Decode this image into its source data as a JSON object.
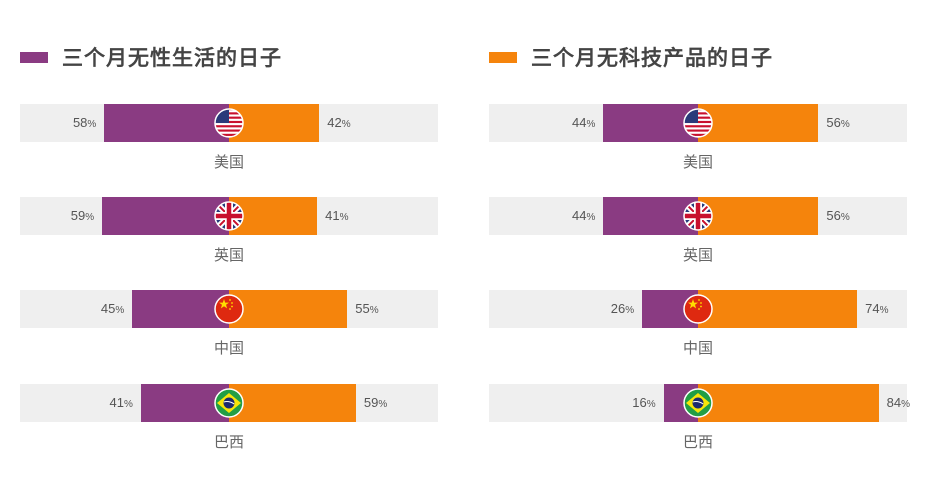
{
  "chart_data": [
    {
      "type": "bar",
      "orientation": "horizontal-diverging",
      "legend": {
        "label": "三个月无性生活的日子",
        "color": "#8a3b82"
      },
      "categories": [
        "美国",
        "英国",
        "中国",
        "巴西"
      ],
      "flags": [
        "us-flag-icon",
        "uk-flag-icon",
        "china-flag-icon",
        "brazil-flag-icon"
      ],
      "series": [
        {
          "name": "三个月无性生活的日子",
          "values": [
            58,
            59,
            45,
            41
          ],
          "color": "#8a3b82"
        },
        {
          "values": [
            42,
            41,
            55,
            59
          ],
          "color": "#f5840c"
        }
      ],
      "unit": "%"
    },
    {
      "type": "bar",
      "orientation": "horizontal-diverging",
      "legend": {
        "label": "三个月无科技产品的日子",
        "color": "#f5840c"
      },
      "categories": [
        "美国",
        "英国",
        "中国",
        "巴西"
      ],
      "flags": [
        "us-flag-icon",
        "uk-flag-icon",
        "china-flag-icon",
        "brazil-flag-icon"
      ],
      "series": [
        {
          "values": [
            44,
            44,
            26,
            16
          ],
          "color": "#8a3b82"
        },
        {
          "name": "三个月无科技产品的日子",
          "values": [
            56,
            56,
            74,
            84
          ],
          "color": "#f5840c"
        }
      ],
      "unit": "%"
    }
  ]
}
